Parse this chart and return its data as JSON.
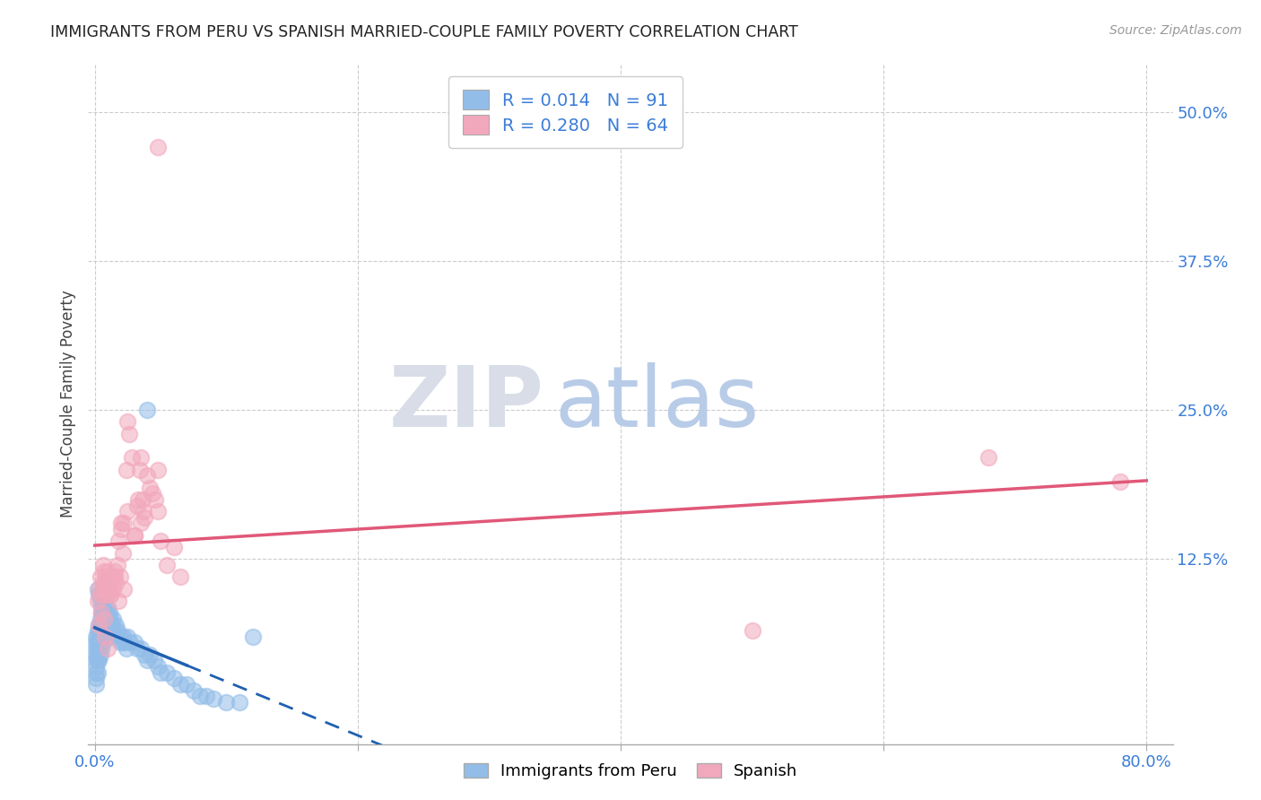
{
  "title": "IMMIGRANTS FROM PERU VS SPANISH MARRIED-COUPLE FAMILY POVERTY CORRELATION CHART",
  "source": "Source: ZipAtlas.com",
  "ylabel": "Married-Couple Family Poverty",
  "xlim": [
    -0.005,
    0.82
  ],
  "ylim": [
    -0.03,
    0.54
  ],
  "xtick_positions": [
    0.0,
    0.2,
    0.4,
    0.6,
    0.8
  ],
  "xticklabels": [
    "0.0%",
    "",
    "",
    "",
    "80.0%"
  ],
  "yticks_right": [
    0.125,
    0.25,
    0.375,
    0.5
  ],
  "ytick_labels_right": [
    "12.5%",
    "25.0%",
    "37.5%",
    "50.0%"
  ],
  "blue_R": 0.014,
  "blue_N": 91,
  "pink_R": 0.28,
  "pink_N": 64,
  "blue_color": "#92BDE8",
  "pink_color": "#F2A8BC",
  "blue_line_color": "#2060B0",
  "pink_line_color": "#E05878",
  "blue_line_solid_end": 0.07,
  "legend_label_blue": "Immigrants from Peru",
  "legend_label_pink": "Spanish",
  "watermark_zip": "ZIP",
  "watermark_atlas": "atlas",
  "axis_label_color": "#3B7DD8",
  "blue_x": [
    0.001,
    0.001,
    0.001,
    0.001,
    0.001,
    0.001,
    0.001,
    0.001,
    0.001,
    0.002,
    0.002,
    0.002,
    0.002,
    0.002,
    0.002,
    0.002,
    0.003,
    0.003,
    0.003,
    0.003,
    0.003,
    0.003,
    0.004,
    0.004,
    0.004,
    0.004,
    0.005,
    0.005,
    0.005,
    0.005,
    0.006,
    0.006,
    0.006,
    0.007,
    0.007,
    0.007,
    0.008,
    0.008,
    0.009,
    0.009,
    0.01,
    0.01,
    0.011,
    0.011,
    0.012,
    0.012,
    0.013,
    0.014,
    0.015,
    0.016,
    0.017,
    0.018,
    0.019,
    0.02,
    0.021,
    0.022,
    0.023,
    0.024,
    0.025,
    0.027,
    0.03,
    0.032,
    0.035,
    0.038,
    0.04,
    0.042,
    0.045,
    0.048,
    0.05,
    0.055,
    0.06,
    0.065,
    0.07,
    0.075,
    0.08,
    0.085,
    0.09,
    0.1,
    0.11,
    0.12,
    0.002,
    0.003,
    0.004,
    0.005,
    0.006,
    0.006,
    0.007,
    0.008,
    0.009,
    0.01,
    0.04
  ],
  "blue_y": [
    0.06,
    0.055,
    0.05,
    0.045,
    0.04,
    0.035,
    0.03,
    0.025,
    0.02,
    0.065,
    0.06,
    0.055,
    0.05,
    0.045,
    0.04,
    0.03,
    0.07,
    0.065,
    0.06,
    0.055,
    0.05,
    0.04,
    0.075,
    0.065,
    0.055,
    0.045,
    0.08,
    0.07,
    0.06,
    0.05,
    0.08,
    0.07,
    0.055,
    0.085,
    0.075,
    0.06,
    0.085,
    0.07,
    0.08,
    0.065,
    0.085,
    0.07,
    0.08,
    0.065,
    0.075,
    0.06,
    0.07,
    0.075,
    0.065,
    0.07,
    0.065,
    0.06,
    0.055,
    0.06,
    0.055,
    0.06,
    0.055,
    0.05,
    0.06,
    0.055,
    0.055,
    0.05,
    0.05,
    0.045,
    0.04,
    0.045,
    0.04,
    0.035,
    0.03,
    0.03,
    0.025,
    0.02,
    0.02,
    0.015,
    0.01,
    0.01,
    0.008,
    0.005,
    0.005,
    0.06,
    0.1,
    0.095,
    0.09,
    0.085,
    0.095,
    0.1,
    0.09,
    0.085,
    0.08,
    0.075,
    0.25
  ],
  "pink_x": [
    0.002,
    0.003,
    0.004,
    0.005,
    0.006,
    0.006,
    0.007,
    0.007,
    0.008,
    0.008,
    0.009,
    0.01,
    0.011,
    0.012,
    0.013,
    0.014,
    0.015,
    0.016,
    0.017,
    0.018,
    0.019,
    0.02,
    0.021,
    0.022,
    0.024,
    0.025,
    0.026,
    0.028,
    0.03,
    0.032,
    0.033,
    0.034,
    0.035,
    0.036,
    0.037,
    0.038,
    0.04,
    0.042,
    0.044,
    0.046,
    0.048,
    0.05,
    0.055,
    0.06,
    0.065,
    0.048,
    0.02,
    0.025,
    0.03,
    0.035,
    0.01,
    0.012,
    0.015,
    0.018,
    0.022,
    0.003,
    0.005,
    0.007,
    0.008,
    0.01,
    0.68,
    0.78,
    0.5,
    0.048
  ],
  "pink_y": [
    0.09,
    0.1,
    0.11,
    0.095,
    0.105,
    0.12,
    0.115,
    0.1,
    0.095,
    0.11,
    0.105,
    0.115,
    0.1,
    0.095,
    0.11,
    0.1,
    0.115,
    0.105,
    0.12,
    0.14,
    0.11,
    0.15,
    0.13,
    0.155,
    0.2,
    0.24,
    0.23,
    0.21,
    0.145,
    0.17,
    0.175,
    0.2,
    0.21,
    0.175,
    0.165,
    0.16,
    0.195,
    0.185,
    0.18,
    0.175,
    0.165,
    0.14,
    0.12,
    0.135,
    0.11,
    0.2,
    0.155,
    0.165,
    0.145,
    0.155,
    0.105,
    0.095,
    0.11,
    0.09,
    0.1,
    0.07,
    0.08,
    0.075,
    0.06,
    0.05,
    0.21,
    0.19,
    0.065,
    0.47
  ]
}
